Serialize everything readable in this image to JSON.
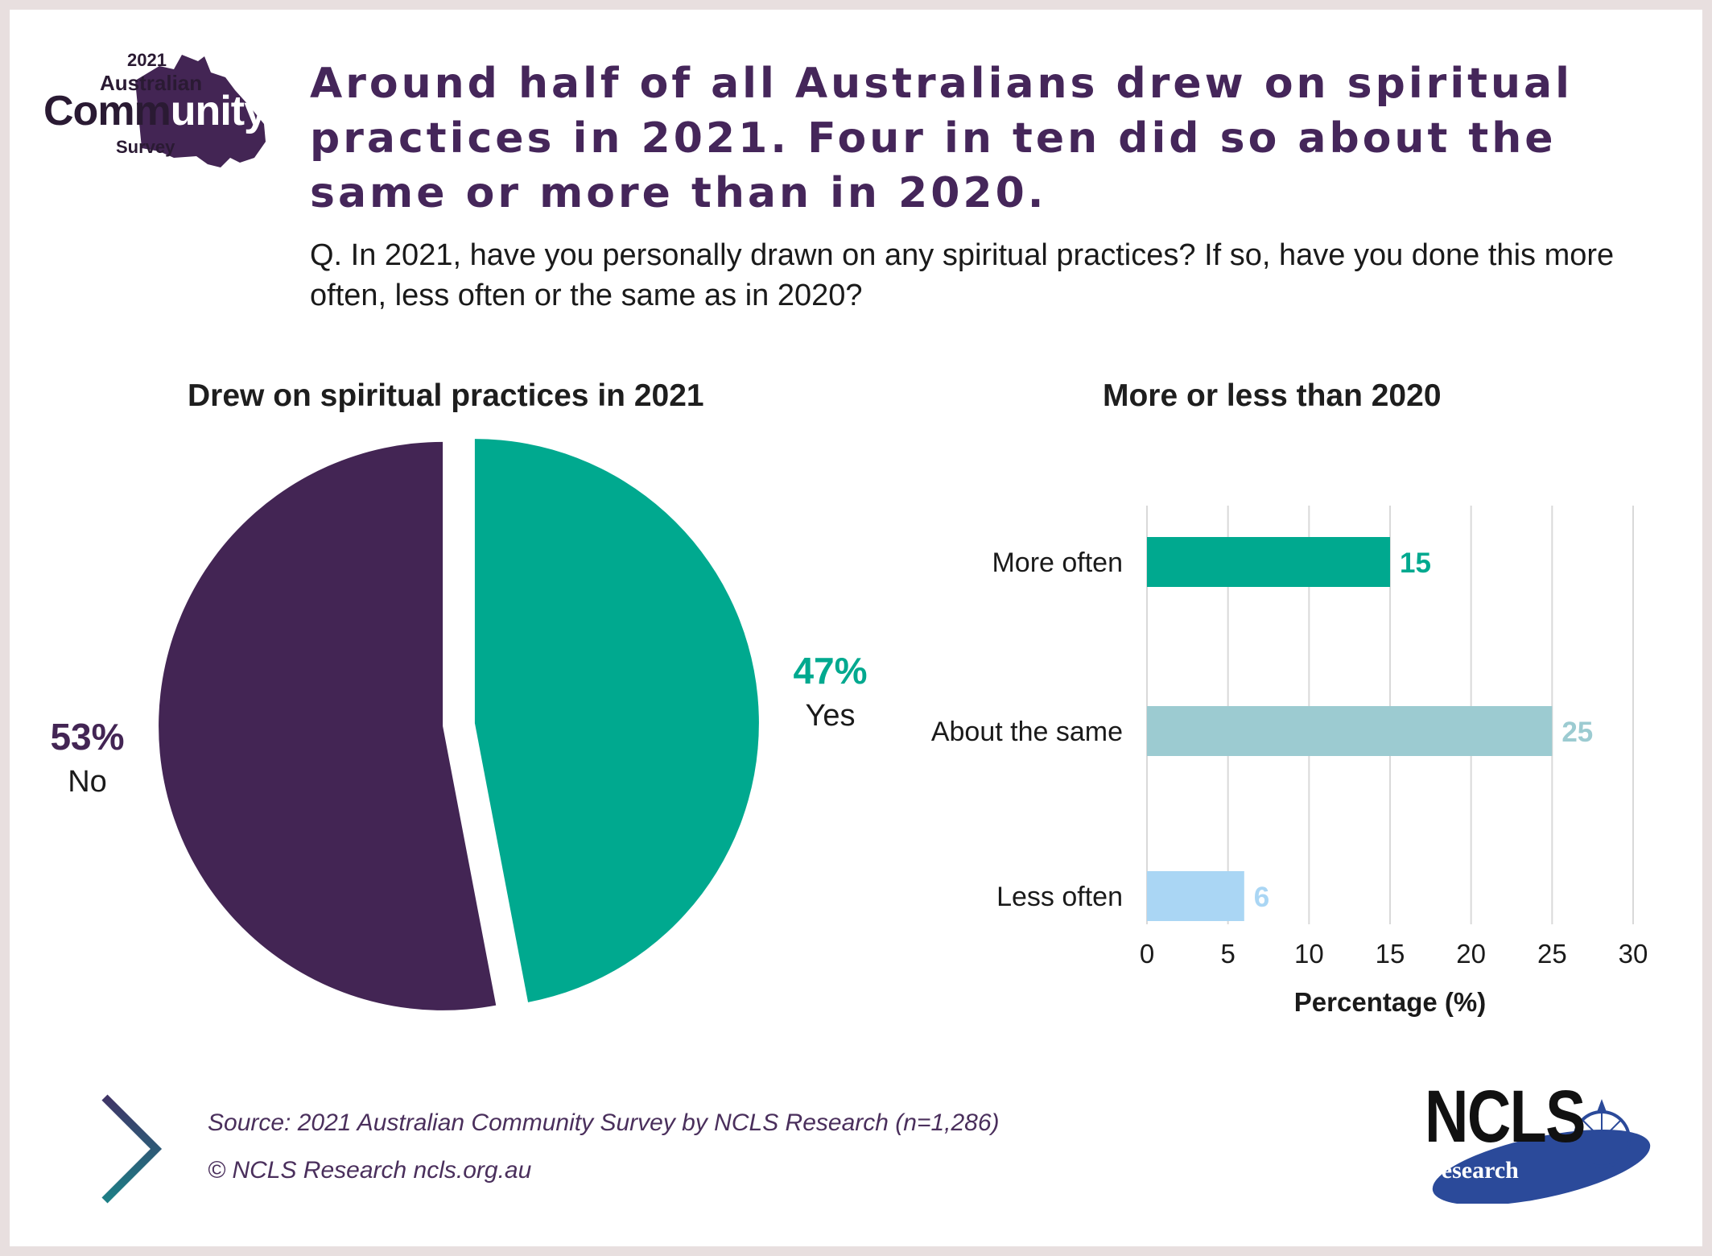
{
  "logo": {
    "year": "2021",
    "line1": "Australian",
    "line2_a": "Comm",
    "line2_b": "unity",
    "line3": "Survey"
  },
  "headline": "Around half of all Australians drew on spiritual practices in 2021. Four in ten did so about the same or more than in 2020.",
  "question": "Q. In 2021, have you personally drawn on any spiritual practices? If so, have you done this more often, less often or the same as in 2020?",
  "chart_data": [
    {
      "type": "pie",
      "title": "Drew on spiritual practices in 2021",
      "slices": [
        {
          "label": "Yes",
          "value": 47,
          "value_label": "47%",
          "color": "#00a98f"
        },
        {
          "label": "No",
          "value": 53,
          "value_label": "53%",
          "color": "#432554"
        }
      ]
    },
    {
      "type": "bar",
      "orientation": "horizontal",
      "title": "More or less than 2020",
      "categories": [
        "More often",
        "About the same",
        "Less often"
      ],
      "values": [
        15,
        25,
        6
      ],
      "colors": [
        "#00a98f",
        "#9ccbd1",
        "#aad6f4"
      ],
      "xlabel": "Percentage (%)",
      "xlim": [
        0,
        30
      ],
      "xticks": [
        0,
        5,
        10,
        15,
        20,
        25,
        30
      ],
      "grid": true
    }
  ],
  "footer": {
    "source": "Source: 2021 Australian Community Survey by NCLS Research (n=1,286)",
    "copyright": "© NCLS Research   ncls.org.au"
  },
  "ncls_logo": {
    "word": "NCLS",
    "sub": "research"
  },
  "colors": {
    "purple": "#432554",
    "teal": "#00a98f",
    "headline": "#45265a"
  }
}
